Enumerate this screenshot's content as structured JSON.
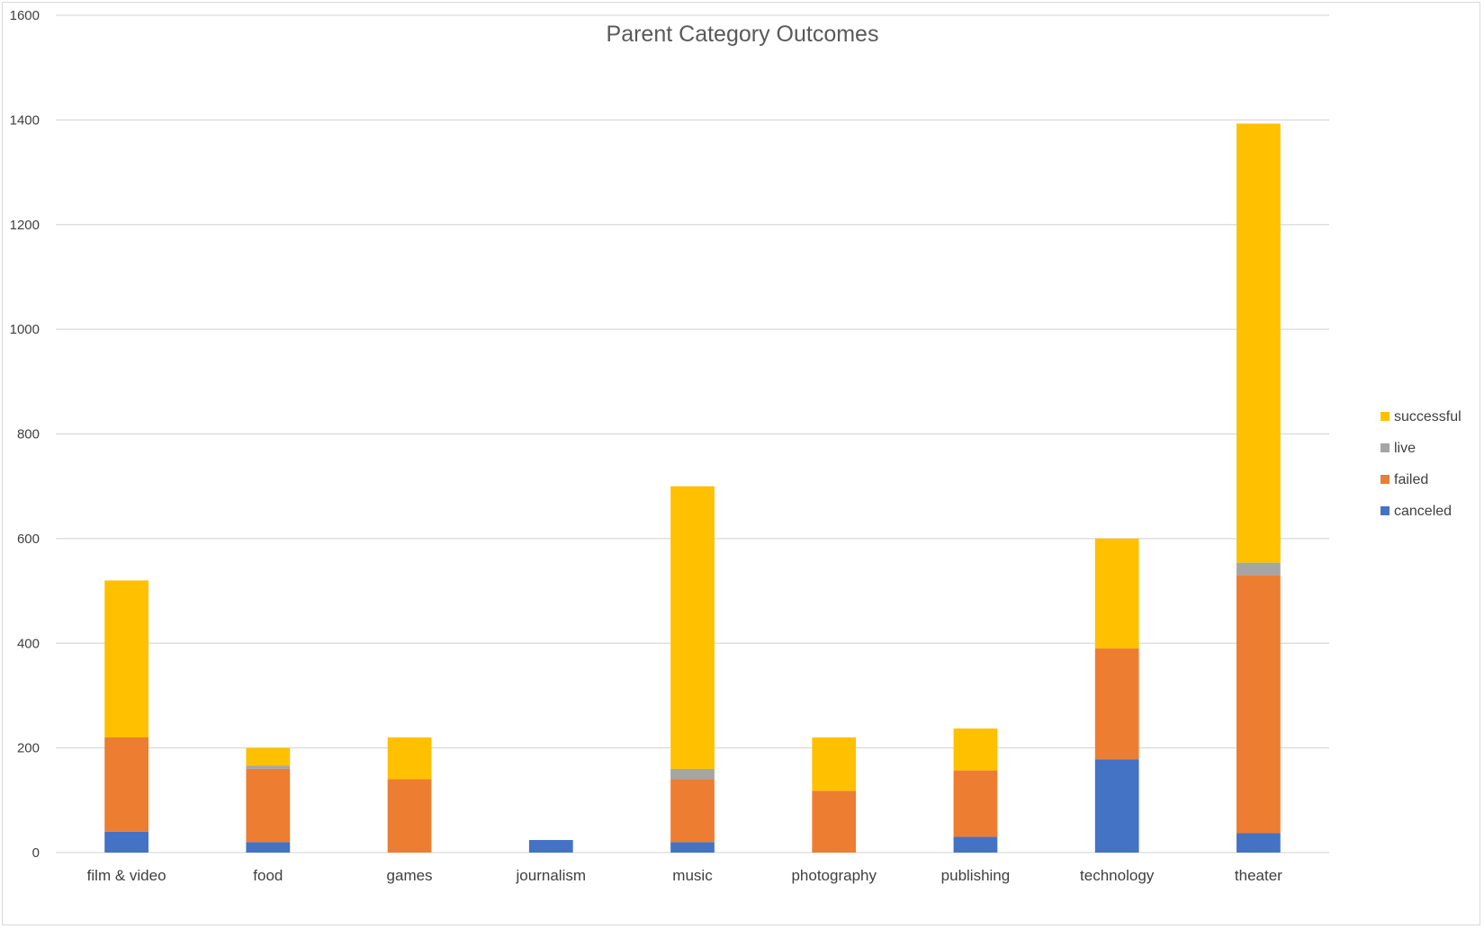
{
  "chart_data": {
    "type": "bar",
    "stacked": true,
    "title": "Parent Category Outcomes",
    "xlabel": "",
    "ylabel": "",
    "ylim": [
      0,
      1600
    ],
    "yticks": [
      0,
      200,
      400,
      600,
      800,
      1000,
      1200,
      1400,
      1600
    ],
    "grid": true,
    "legend_position": "right",
    "categories": [
      "film & video",
      "food",
      "games",
      "journalism",
      "music",
      "photography",
      "publishing",
      "technology",
      "theater"
    ],
    "series": [
      {
        "name": "canceled",
        "color": "#4472C4",
        "values": [
          40,
          20,
          0,
          24,
          20,
          0,
          30,
          178,
          37
        ]
      },
      {
        "name": "failed",
        "color": "#ED7D31",
        "values": [
          180,
          140,
          140,
          0,
          120,
          118,
          127,
          212,
          493
        ]
      },
      {
        "name": "live",
        "color": "#A5A5A5",
        "values": [
          0,
          6,
          0,
          0,
          20,
          0,
          0,
          0,
          24
        ]
      },
      {
        "name": "successful",
        "color": "#FFC000",
        "values": [
          300,
          34,
          80,
          0,
          540,
          102,
          80,
          210,
          839
        ]
      }
    ]
  }
}
